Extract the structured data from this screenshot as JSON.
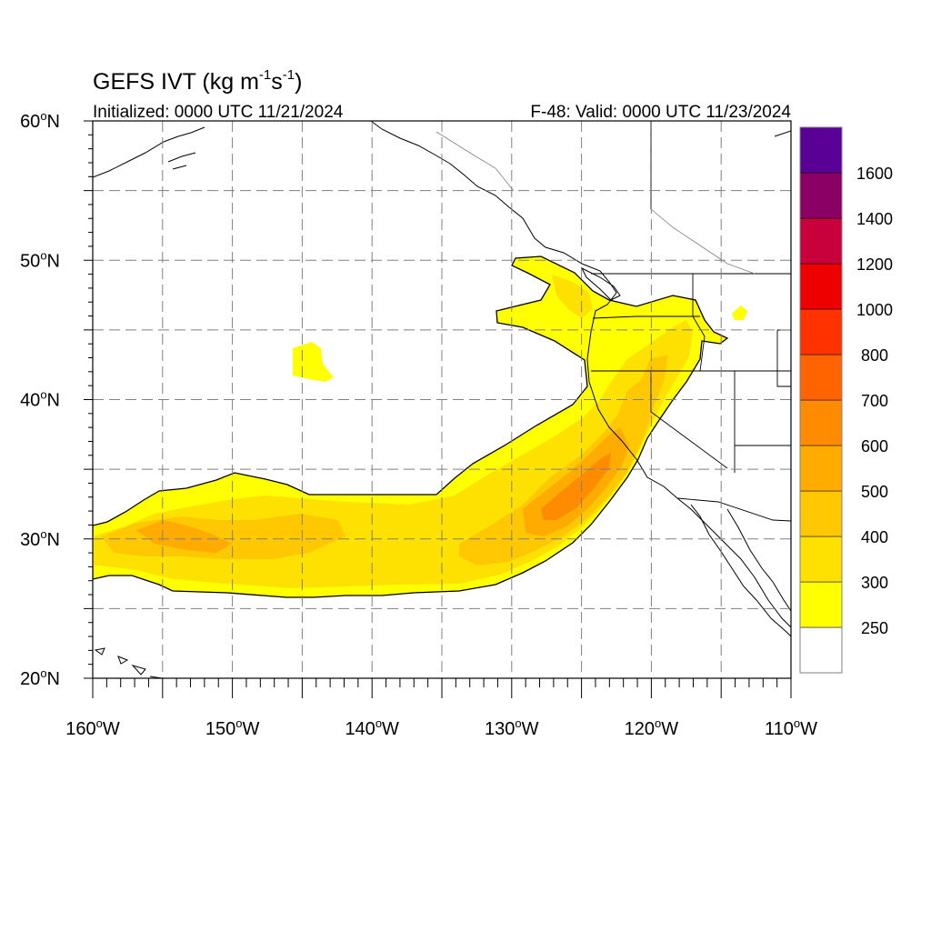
{
  "title": {
    "main": "GEFS IVT (kg m",
    "unit_exp1": "-1",
    "unit_mid": "s",
    "unit_exp2": "-1",
    "unit_close": ")",
    "initialized": "Initialized: 0000 UTC 11/21/2024",
    "valid": "F-48: Valid: 0000 UTC 11/23/2024"
  },
  "map": {
    "lon_range": [
      -160,
      -110
    ],
    "lat_range": [
      20,
      60
    ],
    "grid": "dashed every 5°",
    "lat_labels": [
      {
        "lat": 60,
        "deg": "60",
        "hem": "N"
      },
      {
        "lat": 50,
        "deg": "50",
        "hem": "N"
      },
      {
        "lat": 40,
        "deg": "40",
        "hem": "N"
      },
      {
        "lat": 30,
        "deg": "30",
        "hem": "N"
      },
      {
        "lat": 20,
        "deg": "20",
        "hem": "N"
      }
    ],
    "lon_labels": [
      {
        "lon": -160,
        "deg": "160",
        "hem": "W"
      },
      {
        "lon": -150,
        "deg": "150",
        "hem": "W"
      },
      {
        "lon": -140,
        "deg": "140",
        "hem": "W"
      },
      {
        "lon": -130,
        "deg": "130",
        "hem": "W"
      },
      {
        "lon": -120,
        "deg": "120",
        "hem": "W"
      },
      {
        "lon": -110,
        "deg": "110",
        "hem": "W"
      }
    ]
  },
  "colorbar": {
    "colors": [
      "#ffffff",
      "#ffff00",
      "#ffe100",
      "#ffc800",
      "#ffab00",
      "#ff8c00",
      "#ff6400",
      "#ff3200",
      "#ee0000",
      "#c8003c",
      "#8b0064",
      "#5a0096"
    ],
    "labels": [
      "250",
      "300",
      "400",
      "500",
      "600",
      "700",
      "800",
      "1000",
      "1200",
      "1400",
      "1600"
    ]
  },
  "chart_data": {
    "type": "heatmap",
    "variable": "Integrated Vapor Transport",
    "unit": "kg m-1 s-1",
    "contour_levels": [
      250,
      300,
      400,
      500,
      600,
      700,
      800,
      1000,
      1200,
      1400,
      1600
    ],
    "x_range": [
      -160,
      -110
    ],
    "y_range": [
      20,
      60
    ],
    "max_category": "600-700 near 35N 125W"
  }
}
